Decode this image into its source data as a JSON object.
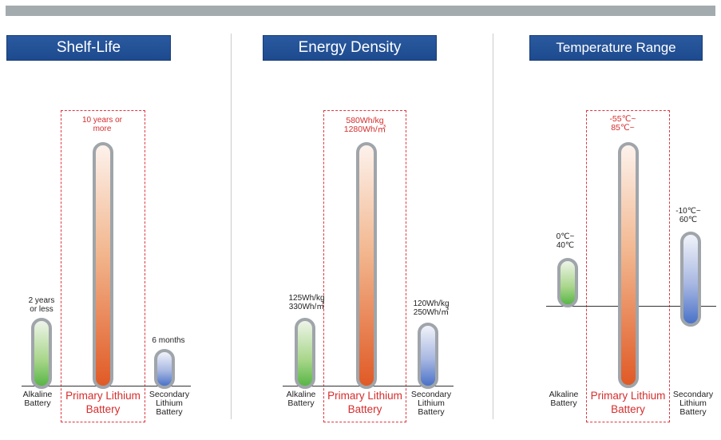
{
  "colors": {
    "alkaline": "#58b646",
    "primary_lithium": "#e05a26",
    "secondary_lithium": "#4a72c8",
    "title_bg": "#1d4a8e",
    "highlight": "#e0353f"
  },
  "chart_data": [
    {
      "type": "bar",
      "title": "Shelf-Life",
      "categories": [
        "Alkaline Battery",
        "Primary Lithium Battery",
        "Secondary Lithium Battery"
      ],
      "category_lines": [
        [
          "Alkaline",
          "Battery"
        ],
        [
          "Primary Lithium",
          "Battery"
        ],
        [
          "Secondary",
          "Lithium",
          "Battery"
        ]
      ],
      "values": [
        2,
        10,
        0.5
      ],
      "value_labels": [
        "2 years\nor less",
        "10 years or\nmore",
        "6 months"
      ],
      "highlight": "Primary Lithium Battery"
    },
    {
      "type": "bar",
      "title": "Energy Density",
      "categories": [
        "Alkaline Battery",
        "Primary Lithium Battery",
        "Secondary Lithium Battery"
      ],
      "category_lines": [
        [
          "Alkaline",
          "Battery"
        ],
        [
          "Primary Lithium",
          "Battery"
        ],
        [
          "Secondary",
          "Lithium",
          "Battery"
        ]
      ],
      "values": [
        125,
        580,
        120
      ],
      "value_labels": [
        "125Wh/kg\n330Wh/㎥",
        "580Wh/kg\n1280Wh/㎥",
        "120Wh/kg\n250Wh/㎥"
      ],
      "highlight": "Primary Lithium Battery"
    },
    {
      "type": "bar",
      "title": "Temperature Range",
      "categories": [
        "Alkaline Battery",
        "Primary Lithium Battery",
        "Secondary Lithium Battery"
      ],
      "category_lines": [
        [
          "Alkaline",
          "Battery"
        ],
        [
          "Primary Lithium",
          "Battery"
        ],
        [
          "Secondary",
          "Lithium",
          "Battery"
        ]
      ],
      "ranges": [
        [
          0,
          40
        ],
        [
          -55,
          85
        ],
        [
          -10,
          60
        ]
      ],
      "value_labels": [
        "0℃~\n40℃",
        "-55℃~\n85℃~",
        "-10℃~\n60℃"
      ],
      "highlight": "Primary Lithium Battery"
    }
  ]
}
